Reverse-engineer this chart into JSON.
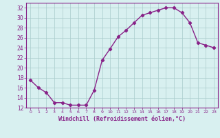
{
  "x": [
    0,
    1,
    2,
    3,
    4,
    5,
    6,
    7,
    8,
    9,
    10,
    11,
    12,
    13,
    14,
    15,
    16,
    17,
    18,
    19,
    20,
    21,
    22,
    23
  ],
  "y": [
    17.5,
    16.0,
    15.0,
    13.0,
    13.0,
    12.5,
    12.5,
    12.5,
    15.5,
    21.5,
    23.8,
    26.2,
    27.5,
    29.0,
    30.5,
    31.0,
    31.5,
    32.0,
    32.0,
    31.0,
    29.0,
    25.0,
    24.5,
    24.0
  ],
  "xlim": [
    -0.5,
    23.5
  ],
  "ylim": [
    12,
    33
  ],
  "yticks": [
    12,
    14,
    16,
    18,
    20,
    22,
    24,
    26,
    28,
    30,
    32
  ],
  "xticks": [
    0,
    1,
    2,
    3,
    4,
    5,
    6,
    7,
    8,
    9,
    10,
    11,
    12,
    13,
    14,
    15,
    16,
    17,
    18,
    19,
    20,
    21,
    22,
    23
  ],
  "xlabel": "Windchill (Refroidissement éolien,°C)",
  "line_color": "#882288",
  "marker": "D",
  "marker_size": 2.2,
  "bg_color": "#d8f0f0",
  "grid_color": "#aacccc",
  "tick_label_color": "#882288",
  "xlabel_color": "#882288",
  "line_width": 1.0,
  "font_size_xtick": 4.5,
  "font_size_ytick": 5.5,
  "font_size_xlabel": 6.0
}
